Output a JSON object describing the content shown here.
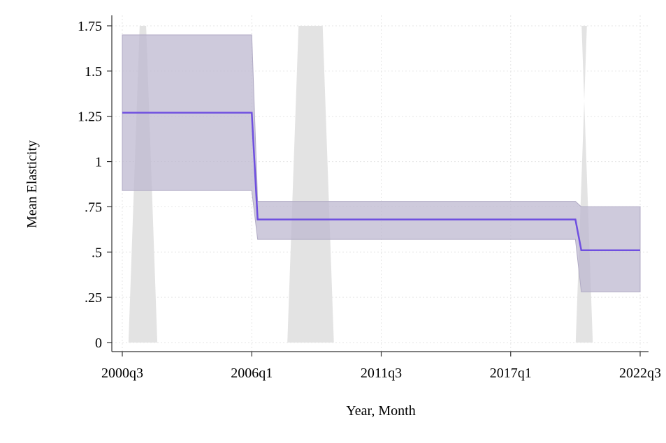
{
  "chart_data": {
    "type": "line",
    "title": "",
    "xlabel": "Year, Month",
    "ylabel": "Mean Elasticity",
    "x_range": [
      "2000q3",
      "2022q3"
    ],
    "ylim": [
      0,
      1.75
    ],
    "x_ticks": [
      "2000q3",
      "2006q1",
      "2011q3",
      "2017q1",
      "2022q3"
    ],
    "y_ticks": [
      "0",
      ".25",
      ".5",
      ".75",
      "1",
      "1.25",
      "1.5",
      "1.75"
    ],
    "grid": true,
    "legend": "none",
    "colors": {
      "line": "#6f4fe0",
      "ci_band": "#bdb8d0",
      "recession": "#e3e3e3",
      "axis": "#333333",
      "grid": "#e6e6e6"
    },
    "recession_shading": [
      {
        "start": "2001q1",
        "end": "2001q4"
      },
      {
        "start": "2007q4",
        "end": "2009q2"
      },
      {
        "start": "2020q1",
        "end": "2020q2"
      }
    ],
    "series": [
      {
        "points": [
          {
            "x": "2000q3",
            "y": 1.27,
            "lower": 0.84,
            "upper": 1.7
          },
          {
            "x": "2006q1",
            "y": 1.27,
            "lower": 0.84,
            "upper": 1.7
          },
          {
            "x": "2006q2",
            "y": 0.68,
            "lower": 0.57,
            "upper": 0.78
          },
          {
            "x": "2019q4",
            "y": 0.68,
            "lower": 0.57,
            "upper": 0.78
          },
          {
            "x": "2020q1",
            "y": 0.51,
            "lower": 0.28,
            "upper": 0.75
          },
          {
            "x": "2022q3",
            "y": 0.51,
            "lower": 0.28,
            "upper": 0.75
          }
        ]
      }
    ]
  }
}
